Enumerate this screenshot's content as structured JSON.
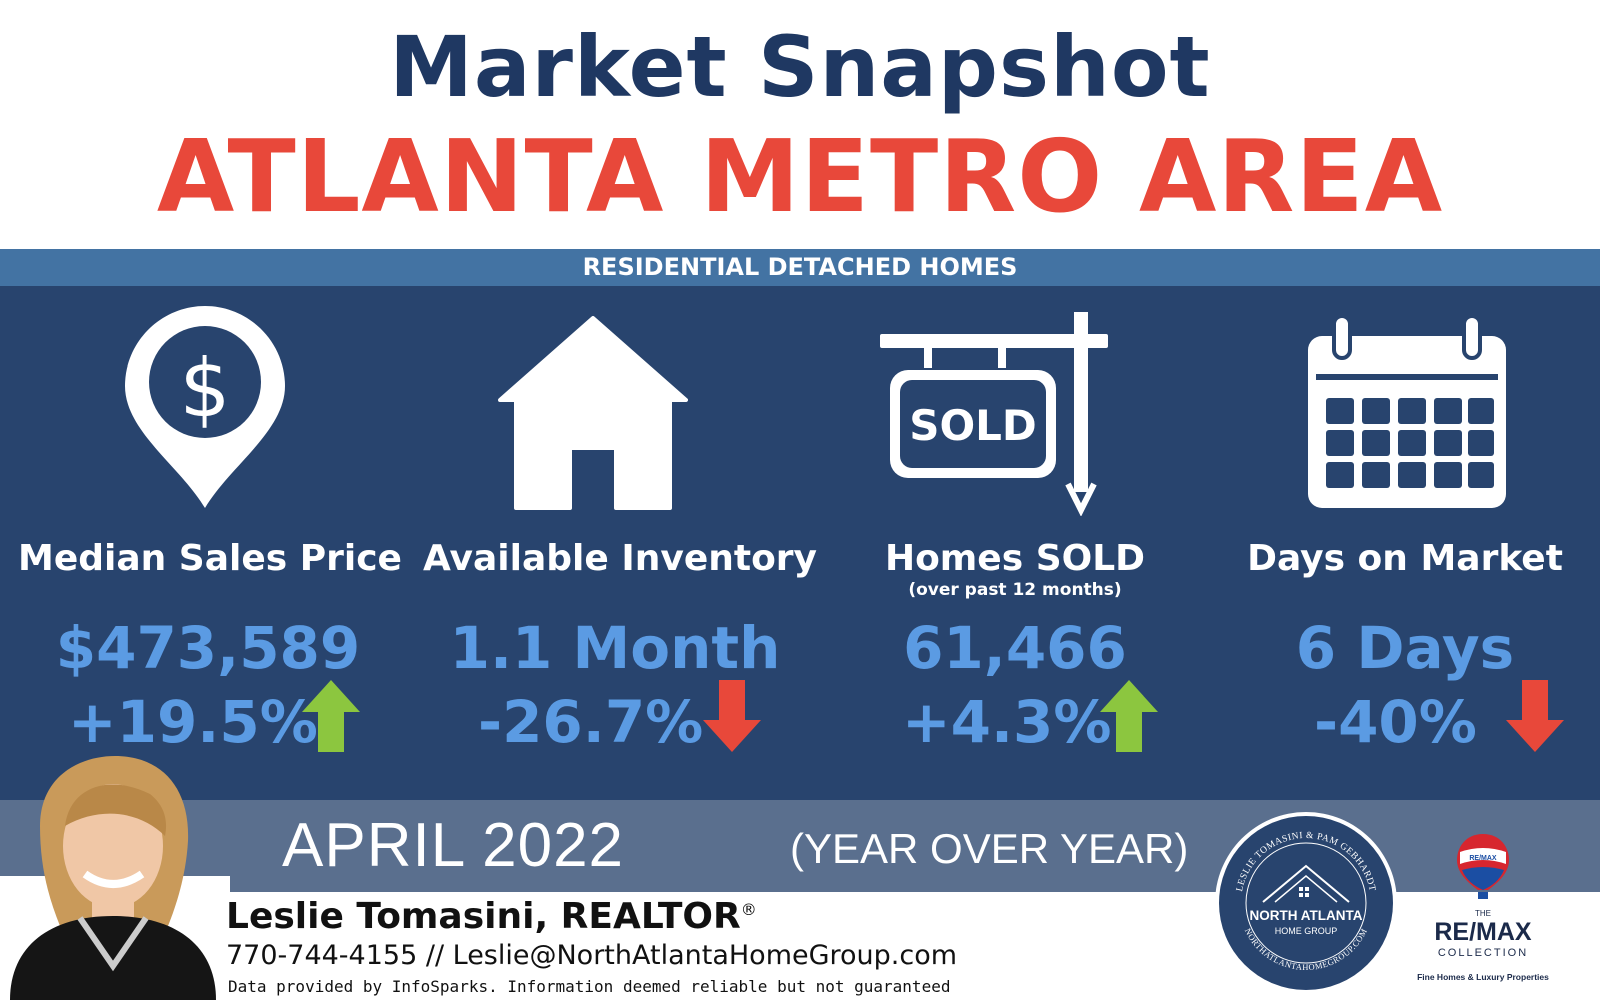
{
  "header": {
    "title": "Market Snapshot",
    "region": "ATLANTA METRO AREA",
    "category": "RESIDENTIAL DETACHED HOMES"
  },
  "stats": [
    {
      "icon": "location-pin-dollar-icon",
      "label": "Median Sales Price",
      "value": "$473,589",
      "change": "+19.5%",
      "direction": "up"
    },
    {
      "icon": "house-icon",
      "label": "Available Inventory",
      "value": "1.1 Month",
      "change": "-26.7%",
      "direction": "down"
    },
    {
      "icon": "sold-sign-icon",
      "label": "Homes SOLD",
      "note": "(over past 12 months)",
      "value": "61,466",
      "change": "+4.3%",
      "direction": "up"
    },
    {
      "icon": "calendar-icon",
      "label": "Days on Market",
      "value": "6 Days",
      "change": "-40%",
      "direction": "down"
    }
  ],
  "sold_sign_text": "SOLD",
  "period": {
    "date": "APRIL 2022",
    "comparison": "(YEAR OVER YEAR)"
  },
  "agent": {
    "name": "Leslie Tomasini, REALTOR",
    "registered_mark": "®",
    "contact": "770-744-4155 // Leslie@NorthAtlantaHomeGroup.com",
    "disclaimer": "Data provided by InfoSparks. Information deemed reliable but not guaranteed"
  },
  "group_logo": {
    "name": "NORTH ATLANTA",
    "subname": "HOME GROUP",
    "ring_top": "LESLIE TOMASINI & PAM GEBHARDT",
    "ring_bottom": "NORTHATLANTAHOMEGROUP.COM"
  },
  "brokerage_logo": {
    "balloon_text": "RE/MAX",
    "the": "THE",
    "name": "RE/MAX",
    "collection": "COLLECTION",
    "tagline": "Fine Homes & Luxury Properties"
  },
  "colors": {
    "navy": "#1f3862",
    "red": "#e8483a",
    "panel": "#28446e",
    "band": "#4373a3",
    "value_blue": "#5b9be3",
    "up_green": "#8cc63f",
    "down_red": "#e8483a"
  }
}
